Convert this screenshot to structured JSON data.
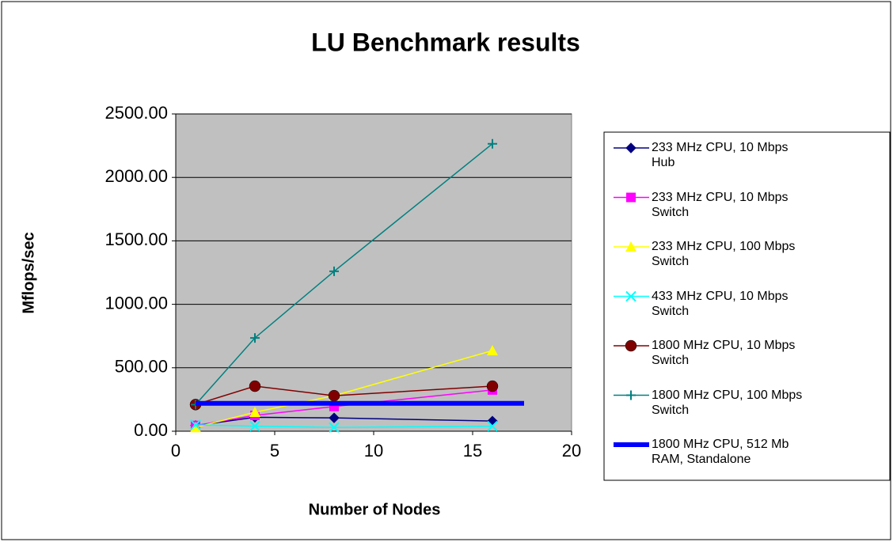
{
  "chart_data": {
    "type": "line",
    "title": "LU Benchmark results",
    "xlabel": "Number of Nodes",
    "ylabel": "Mflops/sec",
    "xlim": [
      0,
      20
    ],
    "xticks": [
      0,
      5,
      10,
      15,
      20
    ],
    "ylim": [
      0,
      2500
    ],
    "yticks": [
      {
        "value": 0,
        "label": "0.00"
      },
      {
        "value": 500,
        "label": "500.00"
      },
      {
        "value": 1000,
        "label": "1000.00"
      },
      {
        "value": 1500,
        "label": "1500.00"
      },
      {
        "value": 2000,
        "label": "2000.00"
      },
      {
        "value": 2500,
        "label": "2500.00"
      }
    ],
    "grid": true,
    "legend": "right",
    "series": [
      {
        "name": "233 MHz CPU, 10 Mbps Hub",
        "color": "#000080",
        "marker": "diamond",
        "x": [
          1,
          4,
          8,
          16
        ],
        "values": [
          45,
          110,
          105,
          80
        ]
      },
      {
        "name": "233 MHz CPU, 10 Mbps Switch",
        "color": "#ff00ff",
        "marker": "square",
        "x": [
          1,
          4,
          8,
          16
        ],
        "values": [
          45,
          125,
          195,
          325
        ]
      },
      {
        "name": "233 MHz CPU, 100 Mbps Switch",
        "color": "#ffff00",
        "marker": "triangle",
        "x": [
          1,
          4,
          8,
          16
        ],
        "values": [
          30,
          150,
          280,
          635
        ]
      },
      {
        "name": "433 MHz CPU, 10 Mbps Switch",
        "color": "#00ffff",
        "marker": "x",
        "x": [
          1,
          4,
          8,
          16
        ],
        "values": [
          50,
          40,
          30,
          40
        ]
      },
      {
        "name": "1800 MHz CPU, 10 Mbps Switch",
        "color": "#800000",
        "marker": "circle",
        "x": [
          1,
          4,
          8,
          16
        ],
        "values": [
          210,
          355,
          280,
          355
        ]
      },
      {
        "name": "1800 MHz CPU, 100 Mbps Switch",
        "color": "#008080",
        "marker": "plus",
        "x": [
          1,
          4,
          8,
          16
        ],
        "values": [
          210,
          735,
          1260,
          2265
        ]
      },
      {
        "name": "1800 MHz CPU, 512 Mb RAM, Standalone",
        "color": "#0000ff",
        "marker": "none",
        "x": [
          1,
          17.6
        ],
        "values": [
          220,
          220
        ]
      }
    ]
  }
}
